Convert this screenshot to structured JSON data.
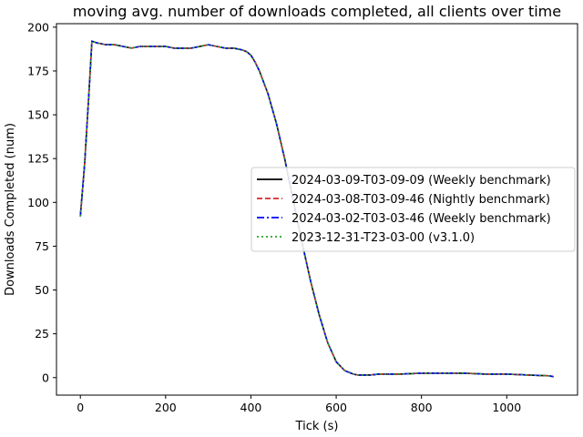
{
  "chart_data": {
    "type": "line",
    "title": "moving avg. number of downloads completed, all clients over time",
    "xlabel": "Tick (s)",
    "ylabel": "Downloads Completed (num)",
    "xlim": [
      -56,
      1166
    ],
    "ylim": [
      -10,
      202
    ],
    "xticks": [
      0,
      200,
      400,
      600,
      800,
      1000
    ],
    "yticks": [
      0,
      25,
      50,
      75,
      100,
      125,
      150,
      175,
      200
    ],
    "grid": false,
    "legend_position": "center-right",
    "series": [
      {
        "name": "2024-03-09-T03-09-09 (Weekly benchmark)",
        "color": "#000000",
        "linestyle": "solid",
        "x": [
          0,
          10,
          20,
          27,
          40,
          60,
          80,
          100,
          120,
          140,
          160,
          180,
          200,
          220,
          240,
          260,
          280,
          300,
          320,
          340,
          360,
          380,
          390,
          400,
          410,
          420,
          440,
          460,
          480,
          500,
          520,
          540,
          560,
          580,
          600,
          620,
          640,
          650,
          660,
          680,
          700,
          750,
          800,
          850,
          900,
          950,
          1000,
          1050,
          1100,
          1110
        ],
        "y": [
          92,
          122,
          162,
          192,
          191,
          190,
          190,
          189,
          188,
          189,
          189,
          189,
          189,
          188,
          188,
          188,
          189,
          190,
          189,
          188,
          188,
          187,
          186,
          184,
          180,
          175,
          162,
          145,
          124,
          100,
          77,
          55,
          36,
          20,
          9,
          4,
          2,
          1.5,
          1.5,
          1.5,
          2,
          2,
          2.5,
          2.5,
          2.5,
          2,
          2,
          1.5,
          1,
          0.5
        ]
      },
      {
        "name": "2024-03-08-T03-09-46 (Nightly benchmark)",
        "color": "#d62728",
        "linestyle": "dashed",
        "x": [
          0,
          10,
          20,
          27,
          40,
          60,
          80,
          100,
          120,
          140,
          160,
          180,
          200,
          220,
          240,
          260,
          280,
          300,
          320,
          340,
          360,
          380,
          390,
          400,
          410,
          420,
          440,
          460,
          480,
          500,
          520,
          540,
          560,
          580,
          600,
          620,
          640,
          650,
          660,
          680,
          700,
          750,
          800,
          850,
          900,
          950,
          1000,
          1050,
          1100,
          1110
        ],
        "y": [
          92,
          122,
          162,
          192,
          191,
          190,
          190,
          189,
          188,
          189,
          189,
          189,
          189,
          188,
          188,
          188,
          189,
          190,
          189,
          188,
          188,
          187,
          186,
          184,
          180,
          175,
          162,
          145,
          124,
          100,
          77,
          55,
          36,
          20,
          9,
          4,
          2,
          1.5,
          1.5,
          1.5,
          2,
          2,
          2.5,
          2.5,
          2.5,
          2,
          2,
          1.5,
          1,
          0.5
        ]
      },
      {
        "name": "2024-03-02-T03-03-46 (Weekly benchmark)",
        "color": "#0000ff",
        "linestyle": "dashdot",
        "x": [
          0,
          10,
          20,
          27,
          40,
          60,
          80,
          100,
          120,
          140,
          160,
          180,
          200,
          220,
          240,
          260,
          280,
          300,
          320,
          340,
          360,
          380,
          390,
          400,
          410,
          420,
          440,
          460,
          480,
          500,
          520,
          540,
          560,
          580,
          600,
          620,
          640,
          650,
          660,
          680,
          700,
          750,
          800,
          850,
          900,
          950,
          1000,
          1050,
          1100,
          1110
        ],
        "y": [
          92,
          122,
          162,
          192,
          191,
          190,
          190,
          189,
          188,
          189,
          189,
          189,
          189,
          188,
          188,
          188,
          189,
          190,
          189,
          188,
          188,
          187,
          186,
          184,
          180,
          175,
          162,
          145,
          124,
          100,
          77,
          55,
          36,
          20,
          9,
          4,
          2,
          1.5,
          1.5,
          1.5,
          2,
          2,
          2.5,
          2.5,
          2.5,
          2,
          2,
          1.5,
          1,
          0.5
        ]
      },
      {
        "name": "2023-12-31-T23-03-00 (v3.1.0)",
        "color": "#2ca02c",
        "linestyle": "dotted",
        "x": [
          0,
          10,
          20,
          27,
          40,
          60,
          80,
          100,
          120,
          140,
          160,
          180,
          200,
          220,
          240,
          260,
          280,
          300,
          320,
          340,
          360,
          380,
          390,
          400,
          410,
          420,
          440,
          460,
          480,
          500,
          520,
          540,
          560,
          580,
          600,
          620,
          640,
          650,
          660,
          680,
          700,
          750,
          800,
          850,
          900,
          950,
          1000,
          1050,
          1100,
          1110
        ],
        "y": [
          92,
          122,
          162,
          192,
          191,
          190,
          190,
          189,
          188,
          189,
          189,
          189,
          189,
          188,
          188,
          188,
          189,
          190,
          189,
          188,
          188,
          187,
          186,
          184,
          180,
          175,
          162,
          145,
          124,
          100,
          77,
          55,
          36,
          20,
          9,
          4,
          2,
          1.5,
          1.5,
          1.5,
          2,
          2,
          2.5,
          2.5,
          2.5,
          2,
          2,
          1.5,
          1,
          0.5
        ]
      }
    ]
  }
}
